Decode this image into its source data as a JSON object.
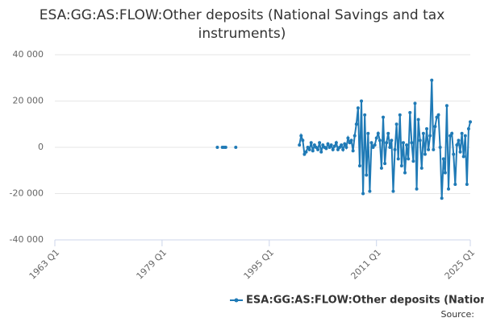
{
  "chart_data": {
    "type": "line",
    "title": "ESA:GG:AS:FLOW:Other deposits (National Savings and tax instruments)",
    "source": "Source:",
    "x": [
      "1987 Q2",
      "1987 Q3",
      "1988 Q1",
      "1988 Q2",
      "1988 Q3",
      "1988 Q4",
      "1990 Q1",
      "1990 Q2",
      "1999 Q3",
      "1999 Q4",
      "2000 Q1",
      "2000 Q2",
      "2000 Q3",
      "2000 Q4",
      "2001 Q1",
      "2001 Q2",
      "2001 Q3",
      "2001 Q4",
      "2002 Q1",
      "2002 Q2",
      "2002 Q3",
      "2002 Q4",
      "2003 Q1",
      "2003 Q2",
      "2003 Q3",
      "2003 Q4",
      "2004 Q1",
      "2004 Q2",
      "2004 Q3",
      "2004 Q4",
      "2005 Q1",
      "2005 Q2",
      "2005 Q3",
      "2005 Q4",
      "2006 Q1",
      "2006 Q2",
      "2006 Q3",
      "2006 Q4",
      "2007 Q1",
      "2007 Q2",
      "2007 Q3",
      "2007 Q4",
      "2008 Q1",
      "2008 Q2",
      "2008 Q3",
      "2008 Q4",
      "2009 Q1",
      "2009 Q2",
      "2009 Q3",
      "2009 Q4",
      "2010 Q1",
      "2010 Q2",
      "2010 Q3",
      "2010 Q4",
      "2011 Q1",
      "2011 Q2",
      "2011 Q3",
      "2011 Q4",
      "2012 Q1",
      "2012 Q2",
      "2012 Q3",
      "2012 Q4",
      "2013 Q1",
      "2013 Q2",
      "2013 Q3",
      "2013 Q4",
      "2014 Q1",
      "2014 Q2",
      "2014 Q3",
      "2014 Q4",
      "2015 Q1",
      "2015 Q2",
      "2015 Q3",
      "2015 Q4",
      "2016 Q1",
      "2016 Q2",
      "2016 Q3",
      "2016 Q4",
      "2017 Q1",
      "2017 Q2",
      "2017 Q3",
      "2017 Q4",
      "2018 Q1",
      "2018 Q2",
      "2018 Q3",
      "2018 Q4",
      "2019 Q1",
      "2019 Q2",
      "2019 Q3",
      "2019 Q4",
      "2020 Q1",
      "2020 Q2",
      "2020 Q3",
      "2020 Q4",
      "2021 Q1",
      "2021 Q2",
      "2021 Q3",
      "2021 Q4",
      "2022 Q1",
      "2022 Q2",
      "2022 Q3",
      "2022 Q4",
      "2023 Q1",
      "2023 Q2",
      "2023 Q3",
      "2023 Q4",
      "2024 Q1",
      "2024 Q2",
      "2024 Q3",
      "2024 Q4",
      "2025 Q1"
    ],
    "series": [
      {
        "name": "ESA:GG:AS:FLOW:Other deposits (National Savings and tax instruments)",
        "color": "#1f7ab6",
        "values": [
          0,
          null,
          0,
          0,
          0,
          null,
          0,
          null,
          1000,
          5000,
          3000,
          -3000,
          -2000,
          0,
          -1000,
          2000,
          -1500,
          1000,
          0,
          -1000,
          2000,
          -2000,
          1000,
          0,
          -500,
          1500,
          0,
          1000,
          -1000,
          500,
          2000,
          -1000,
          0,
          1000,
          -1000,
          1500,
          0,
          4000,
          2000,
          3000,
          -1500,
          5000,
          10000,
          17000,
          -8000,
          20000,
          -20000,
          14000,
          -12000,
          6000,
          -19000,
          2000,
          0,
          1000,
          4000,
          6000,
          3000,
          -9000,
          13000,
          -7000,
          2000,
          6000,
          0,
          3000,
          -19000,
          -1000,
          10000,
          -5000,
          14000,
          -8000,
          2000,
          -11000,
          1000,
          -5000,
          15000,
          2000,
          -6000,
          19000,
          -18000,
          12000,
          3000,
          -9000,
          6000,
          -3000,
          8000,
          -1000,
          5000,
          29000,
          -1000,
          9000,
          13000,
          14000,
          0,
          -22000,
          -5000,
          -11000,
          18000,
          -18000,
          5000,
          6000,
          -3000,
          -16000,
          1000,
          3000,
          -2000,
          6000,
          -4000,
          5000,
          -16000,
          8000,
          11000
        ]
      }
    ],
    "xlim": [
      "1963 Q1",
      "2025 Q1"
    ],
    "xticks": [
      "1963 Q1",
      "1979 Q1",
      "1995 Q1",
      "2011 Q1",
      "2025 Q1"
    ],
    "ylim": [
      -40000,
      40000
    ],
    "yticks": [
      {
        "value": -40000,
        "label": "-40 000"
      },
      {
        "value": -20000,
        "label": "-20 000"
      },
      0,
      {
        "value": 20000,
        "label": "20 000"
      },
      {
        "value": 40000,
        "label": "40 000"
      }
    ],
    "grid": true
  }
}
